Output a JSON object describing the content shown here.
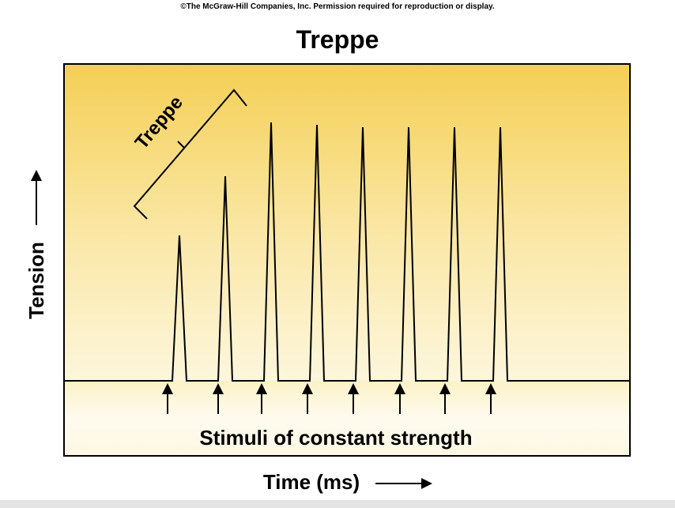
{
  "copyright": "©The McGraw-Hill Companies, Inc. Permission required for reproduction or display.",
  "title": "Treppe",
  "bracket_label": "Treppe",
  "y_axis_label": "Tension",
  "x_axis_label": "Time (ms)",
  "stimuli_label": "Stimuli of constant strength"
}
